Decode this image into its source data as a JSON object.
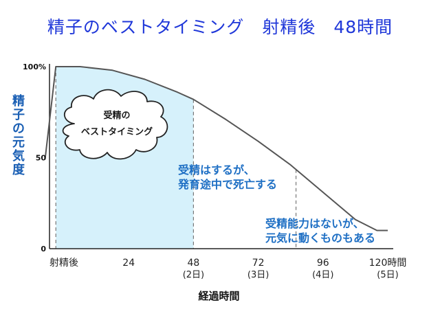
{
  "header": {
    "title": "精子のベストタイミング　射精後　48時間"
  },
  "chart_data": {
    "type": "area",
    "title": "精子のベストタイミング　射精後　48時間",
    "ylabel": [
      "精",
      "子",
      "の",
      "元",
      "気",
      "度"
    ],
    "xlabel": "経過時間",
    "y_ticks": [
      "100%",
      "50",
      "0"
    ],
    "ylim": [
      0,
      100
    ],
    "xlim": [
      0,
      120
    ],
    "x_ticks": [
      {
        "x": 0,
        "label": "射精後",
        "sub": ""
      },
      {
        "x": 24,
        "label": "24",
        "sub": ""
      },
      {
        "x": 48,
        "label": "48",
        "sub": "(2日)"
      },
      {
        "x": 72,
        "label": "72",
        "sub": "(3日)"
      },
      {
        "x": 96,
        "label": "96",
        "sub": "(4日)"
      },
      {
        "x": 120,
        "label": "120時間",
        "sub": "(5日)"
      }
    ],
    "series": [
      {
        "values": [
          {
            "x": -7,
            "y": 49
          },
          {
            "x": -3,
            "y": 100
          },
          {
            "x": 6,
            "y": 100
          },
          {
            "x": 18,
            "y": 98
          },
          {
            "x": 30,
            "y": 93
          },
          {
            "x": 42,
            "y": 86
          },
          {
            "x": 48,
            "y": 82
          },
          {
            "x": 60,
            "y": 71
          },
          {
            "x": 72,
            "y": 59
          },
          {
            "x": 84,
            "y": 46
          },
          {
            "x": 96,
            "y": 31
          },
          {
            "x": 108,
            "y": 16
          },
          {
            "x": 116,
            "y": 10
          },
          {
            "x": 120,
            "y": 10
          }
        ],
        "color": "#555555"
      }
    ],
    "highlight": {
      "x_from": -3,
      "x_to": 48,
      "color": "#d6f1fb",
      "label": [
        "受精の",
        "ベストタイミング"
      ]
    },
    "dividers": [
      -3,
      48,
      86
    ],
    "annotations": [
      {
        "lines": [
          "受精はするが、",
          "発育途中で死亡する"
        ]
      },
      {
        "lines": [
          "受精能力はないが、",
          "元気に動くものもある"
        ]
      }
    ],
    "colors": {
      "title": "#1f37d9",
      "annotation": "#1e6fc4",
      "ylabel": "#1a5fb4"
    },
    "grid": false
  }
}
